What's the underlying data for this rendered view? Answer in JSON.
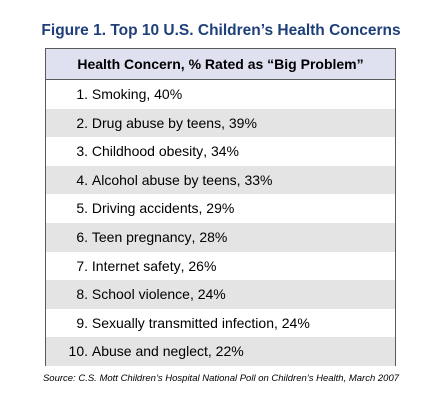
{
  "chart_data": {
    "type": "table",
    "title": "Figure 1. Top 10 U.S. Children’s Health Concerns",
    "column_header": "Health Concern, % Rated as “Big Problem”",
    "rows": [
      {
        "rank": "1.",
        "concern": "Smoking",
        "percent": "40%"
      },
      {
        "rank": "2.",
        "concern": "Drug abuse by teens",
        "percent": "39%"
      },
      {
        "rank": "3.",
        "concern": "Childhood obesity",
        "percent": "34%"
      },
      {
        "rank": "4.",
        "concern": "Alcohol abuse by teens",
        "percent": "33%"
      },
      {
        "rank": "5.",
        "concern": "Driving accidents",
        "percent": "29%"
      },
      {
        "rank": "6.",
        "concern": "Teen pregnancy",
        "percent": "28%"
      },
      {
        "rank": "7.",
        "concern": "Internet safety",
        "percent": "26%"
      },
      {
        "rank": "8.",
        "concern": "School violence",
        "percent": "24%"
      },
      {
        "rank": "9.",
        "concern": "Sexually transmitted infection",
        "percent": "24%"
      },
      {
        "rank": "10.",
        "concern": "Abuse and neglect",
        "percent": "22%"
      }
    ],
    "values": [
      40,
      39,
      34,
      33,
      29,
      28,
      26,
      24,
      24,
      22
    ],
    "source": "Source: C.S. Mott Children’s Hospital National Poll on Children’s Health, March 2007"
  },
  "colors": {
    "title": "#1f3f7a",
    "header_background": "#dfe1f0",
    "shaded_row": "#e4e4e4",
    "border": "#5a5a5a"
  }
}
